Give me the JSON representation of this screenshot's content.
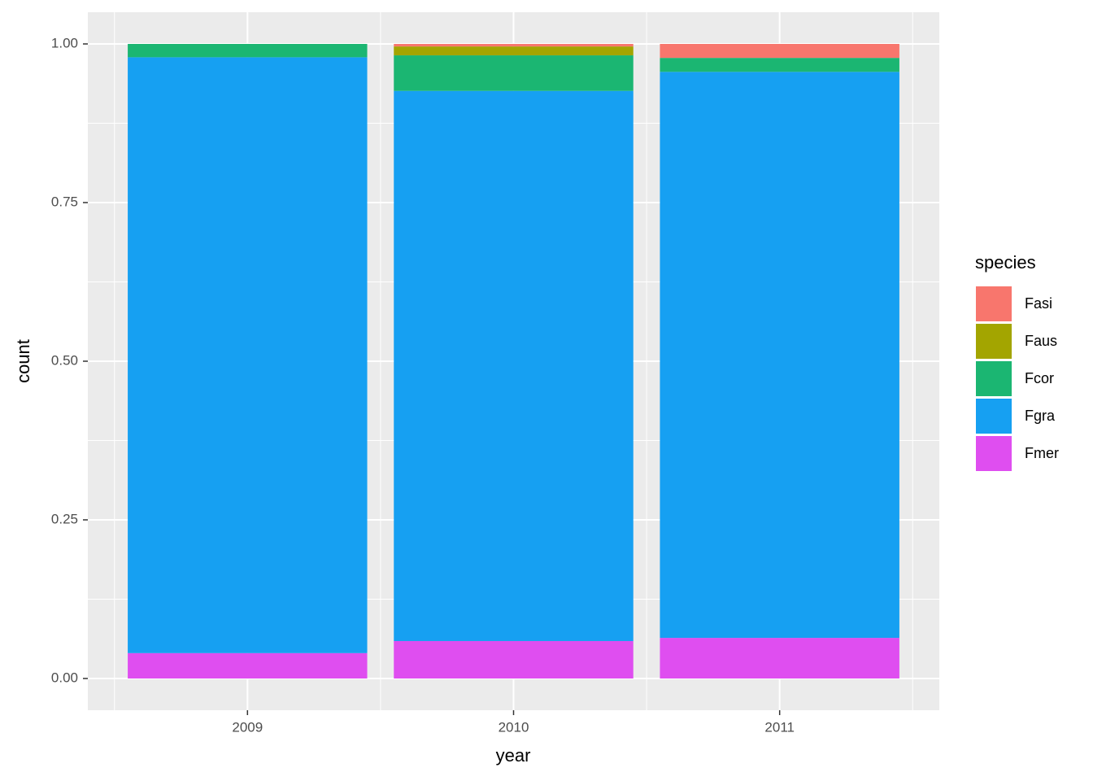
{
  "chart_data": {
    "type": "stacked_bar",
    "x_label": "year",
    "y_label": "count",
    "categories": [
      "2009",
      "2010",
      "2011"
    ],
    "legend_title": "species",
    "legend_position": "right",
    "series": [
      {
        "name": "Fasi",
        "color": "#f8766d",
        "values": [
          0,
          0.004,
          0.022
        ]
      },
      {
        "name": "Faus",
        "color": "#a3a500",
        "values": [
          0,
          0.014,
          0
        ]
      },
      {
        "name": "Fcor",
        "color": "#1bb672",
        "values": [
          0.021,
          0.056,
          0.022
        ]
      },
      {
        "name": "Fgra",
        "color": "#16a0f2",
        "values": [
          0.939,
          0.867,
          0.892
        ]
      },
      {
        "name": "Fmer",
        "color": "#df4ef0",
        "values": [
          0.04,
          0.059,
          0.064
        ]
      }
    ],
    "ylim": [
      -0.05,
      1.05
    ],
    "yticks": [
      {
        "value": 0,
        "label": "0.00"
      },
      {
        "value": 0.25,
        "label": "0.25"
      },
      {
        "value": 0.5,
        "label": "0.50"
      },
      {
        "value": 0.75,
        "label": "0.75"
      },
      {
        "value": 1,
        "label": "1.00"
      }
    ],
    "grid": true
  }
}
